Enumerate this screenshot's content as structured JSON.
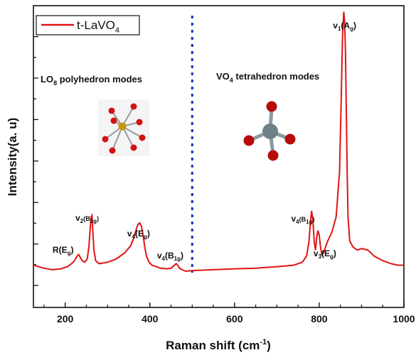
{
  "chart_data": {
    "type": "line",
    "xlabel": "Raman shift (cm",
    "xlabel_sup": "-1",
    "xlabel_close": ")",
    "ylabel": "Intensity(a. u)",
    "xlim": [
      125,
      1000
    ],
    "ylim": [
      0,
      100
    ],
    "x_ticks": [
      200,
      400,
      600,
      800,
      1000
    ],
    "legend": {
      "placement": "top-left",
      "series_name": "t-LaVO",
      "series_sub": "4"
    },
    "series": [
      {
        "name": "t-LaVO4",
        "color": "#e11414",
        "x": [
          125,
          150,
          170,
          190,
          205,
          215,
          222,
          228,
          232,
          236,
          240,
          246,
          252,
          256,
          259,
          261,
          263,
          265,
          268,
          272,
          280,
          300,
          320,
          340,
          355,
          362,
          368,
          372,
          376,
          380,
          384,
          388,
          392,
          398,
          405,
          415,
          425,
          440,
          450,
          458,
          462,
          466,
          470,
          476,
          485,
          500,
          550,
          600,
          650,
          700,
          740,
          760,
          770,
          776,
          779,
          782,
          785,
          788,
          791,
          794,
          797,
          800,
          803,
          806,
          810,
          815,
          820,
          830,
          840,
          848,
          852,
          855,
          858,
          860,
          862,
          864,
          866,
          868,
          872,
          880,
          890,
          900,
          915,
          930,
          950,
          970,
          985,
          1000
        ],
        "y": [
          14,
          13,
          12.5,
          12.8,
          13.5,
          14.5,
          15.5,
          17,
          17.5,
          16.5,
          15.5,
          15,
          16,
          20,
          26,
          30,
          30.5,
          26,
          19,
          15.5,
          14.5,
          15,
          16,
          18,
          20.5,
          23,
          26,
          27.5,
          28,
          27,
          24,
          20,
          17,
          15,
          14,
          13.5,
          13,
          12.8,
          13,
          14,
          14.5,
          14,
          13,
          12.5,
          12,
          12.2,
          12.5,
          12.8,
          13,
          13.5,
          14,
          15,
          17,
          22,
          28,
          32,
          29,
          22,
          19,
          23,
          25.5,
          24,
          20,
          17.5,
          18,
          20,
          22,
          25,
          30,
          45,
          70,
          90,
          98,
          95,
          85,
          65,
          45,
          30,
          22,
          20,
          19,
          19.5,
          19,
          17,
          15.5,
          14.5,
          14,
          14
        ]
      }
    ],
    "annotations": [
      {
        "label": "R(E",
        "sub": "g",
        "tail": ")",
        "x": 232
      },
      {
        "label": "v",
        "sub": "2",
        "label2": "(B",
        "sub2": "2g",
        "tail": ")",
        "x": 262
      },
      {
        "label": "v",
        "sub": "4",
        "label2": "(E",
        "sub2": "g",
        "tail": ")",
        "x": 380
      },
      {
        "label": "v",
        "sub": "4",
        "label2": "(B",
        "sub2": "1g",
        "tail": ")",
        "x": 465
      },
      {
        "label": "v",
        "sub": "4",
        "label2": "(B",
        "sub2": "1g",
        "tail": ")",
        "x": 785
      },
      {
        "label": "v",
        "sub": "3",
        "label2": "(E",
        "sub2": "g",
        "tail": ")",
        "x": 800
      },
      {
        "label": "v",
        "sub": "1",
        "label2": "(A",
        "sub2": "g",
        "tail": ")",
        "x": 860
      }
    ],
    "regions": {
      "divider_x": 500,
      "left_label": "LO",
      "left_sub": "8",
      "left_tail": " polyhedron modes",
      "right_label": "VO",
      "right_sub": "4",
      "right_tail": " tetrahedron modes"
    }
  }
}
